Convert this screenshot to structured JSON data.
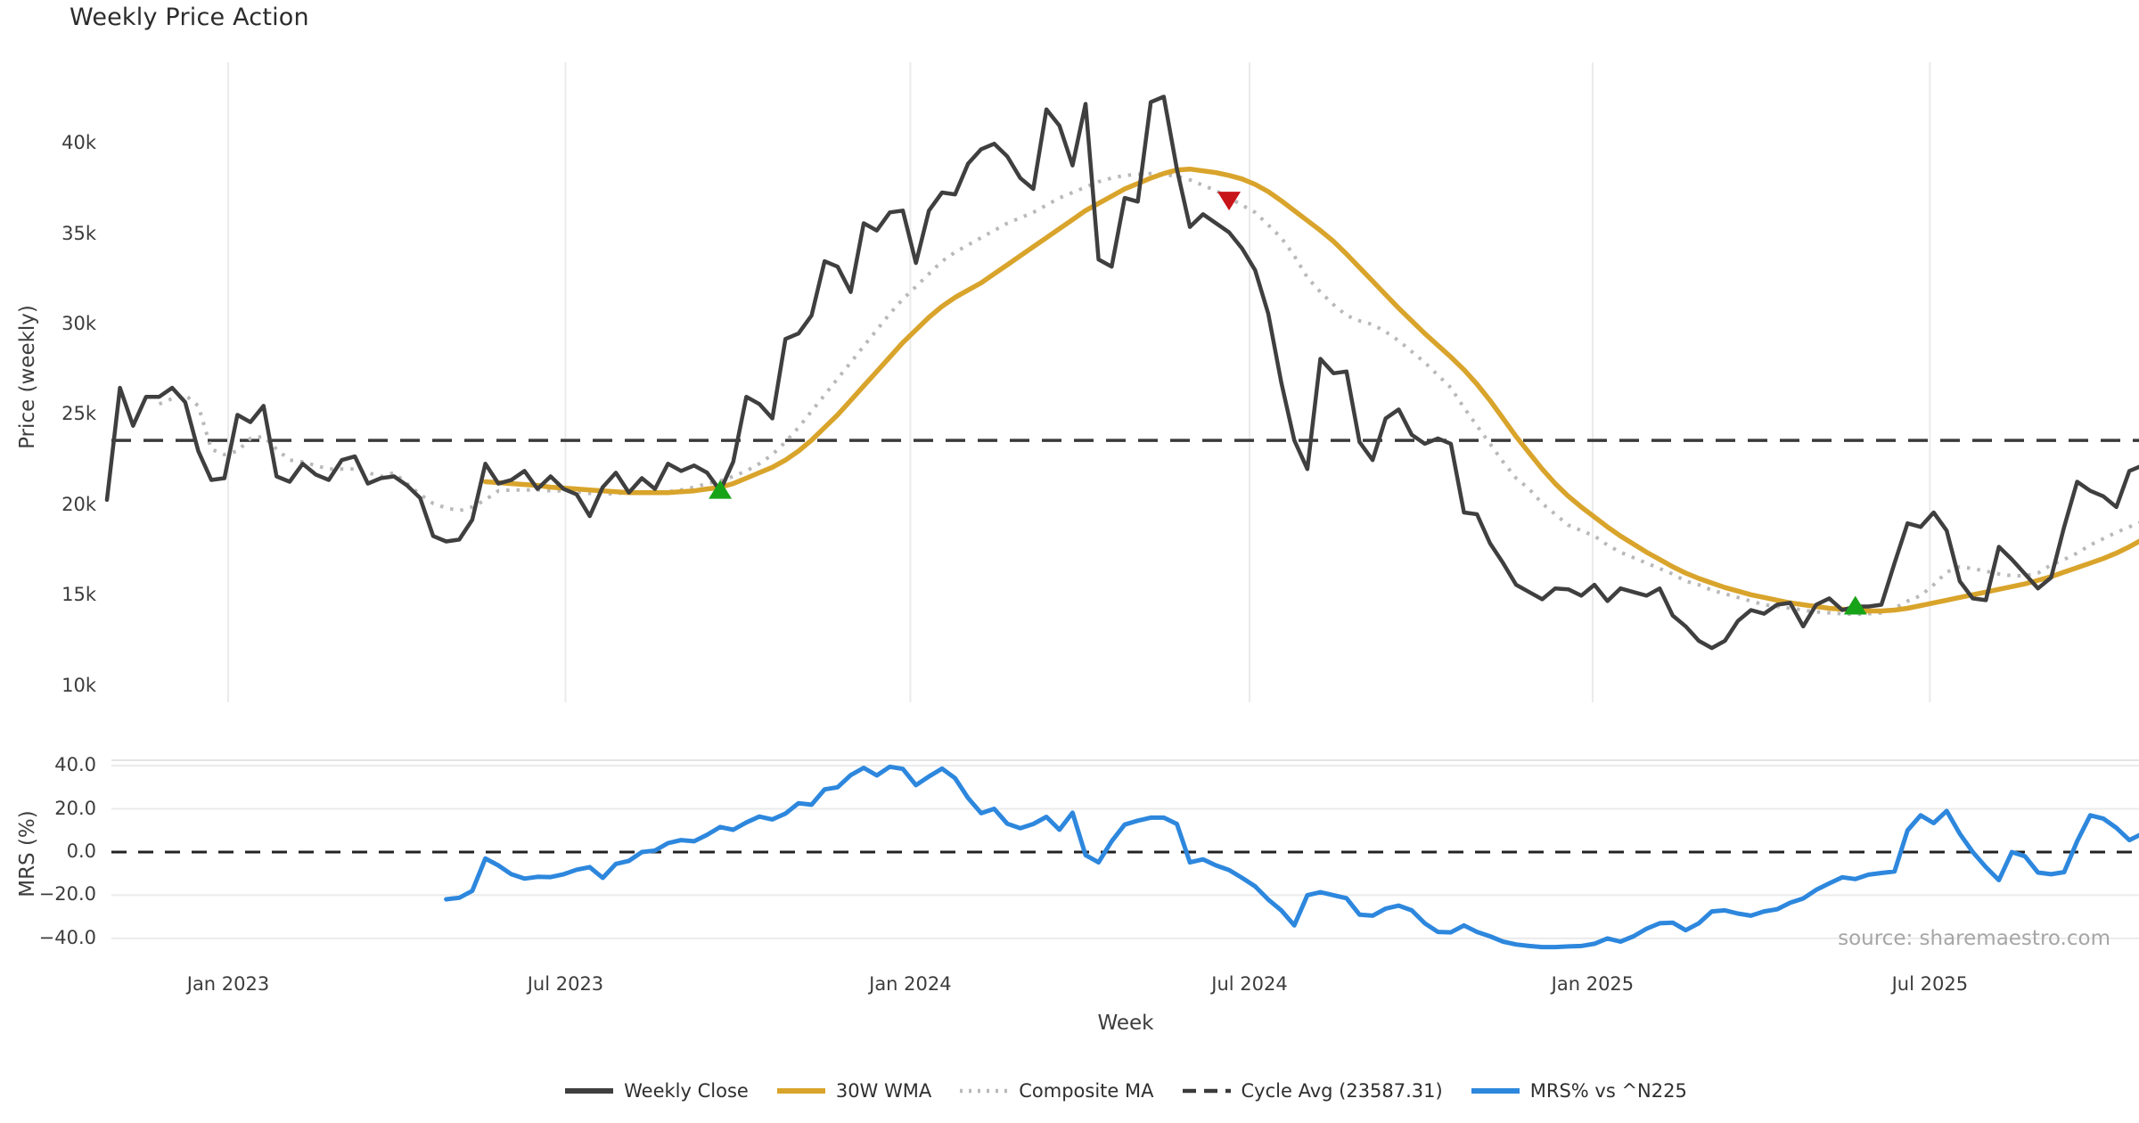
{
  "title": "Weekly Price Action",
  "source_note": "source: sharemaestro.com",
  "axes": {
    "price_axis_label": "Price (weekly)",
    "mrs_axis_label": "MRS (%)",
    "x_axis_label": "Week"
  },
  "legend": [
    {
      "label": "Weekly Close",
      "swatch": "solid",
      "color": "#3f3f3f"
    },
    {
      "label": "30W WMA",
      "swatch": "solid",
      "color": "#d9a42b"
    },
    {
      "label": "Composite MA",
      "swatch": "dotted",
      "color": "#b9b9b9"
    },
    {
      "label": "Cycle Avg (23587.31)",
      "swatch": "dashed",
      "color": "#3a3a3a"
    },
    {
      "label": "MRS% vs ^N225",
      "swatch": "solid",
      "color": "#2d87dd"
    }
  ],
  "chart_data": [
    {
      "panel": "price",
      "type": "line",
      "ylabel": "Price (weekly)",
      "ylim_k": [
        9,
        44.5
      ],
      "grid": "vertical-only",
      "yticks": [
        {
          "v": 40,
          "label": "40k"
        },
        {
          "v": 35,
          "label": "35k"
        },
        {
          "v": 30,
          "label": "30k"
        },
        {
          "v": 25,
          "label": "25k"
        },
        {
          "v": 20,
          "label": "20k"
        },
        {
          "v": 15,
          "label": "15k"
        },
        {
          "v": 10,
          "label": "10k"
        }
      ],
      "xticks": [
        {
          "week": 9.29,
          "label": "Jan 2023"
        },
        {
          "week": 35.14,
          "label": "Jul 2023"
        },
        {
          "week": 61.57,
          "label": "Jan 2024"
        },
        {
          "week": 87.57,
          "label": "Jul 2024"
        },
        {
          "week": 113.86,
          "label": "Jan 2025"
        },
        {
          "week": 139.71,
          "label": "Jul 2025"
        }
      ],
      "cycle_avg_k": 23.58731,
      "series": [
        {
          "name": "Weekly Close",
          "style": "solid",
          "color": "#3f3f3f",
          "width": 4.5,
          "start_week": 0,
          "values_k": [
            20.3,
            26.5,
            24.4,
            26.0,
            26.0,
            26.5,
            25.7,
            23.0,
            21.4,
            21.5,
            25.0,
            24.6,
            25.5,
            21.6,
            21.3,
            22.3,
            21.7,
            21.4,
            22.5,
            22.7,
            21.2,
            21.5,
            21.6,
            21.1,
            20.4,
            18.3,
            18.0,
            18.1,
            19.2,
            22.3,
            21.2,
            21.4,
            21.9,
            20.9,
            21.6,
            20.9,
            20.6,
            19.4,
            21.0,
            21.8,
            20.7,
            21.5,
            20.9,
            22.3,
            21.9,
            22.2,
            21.8,
            20.8,
            22.4,
            26.0,
            25.6,
            24.8,
            29.2,
            29.5,
            30.5,
            33.5,
            33.2,
            31.8,
            35.6,
            35.2,
            36.2,
            36.3,
            33.4,
            36.3,
            37.3,
            37.2,
            38.9,
            39.7,
            40.0,
            39.3,
            38.1,
            37.5,
            41.9,
            41.0,
            38.8,
            42.2,
            33.6,
            33.2,
            37.0,
            36.8,
            42.3,
            42.6,
            38.6,
            35.4,
            36.1,
            35.6,
            35.1,
            34.2,
            33.0,
            30.6,
            26.8,
            23.6,
            22.0,
            28.1,
            27.3,
            27.4,
            23.5,
            22.5,
            24.8,
            25.3,
            23.9,
            23.4,
            23.7,
            23.4,
            19.6,
            19.5,
            17.9,
            16.8,
            15.6,
            15.2,
            14.8,
            15.4,
            15.35,
            15.0,
            15.6,
            14.7,
            15.4,
            15.2,
            15.0,
            15.4,
            13.9,
            13.3,
            12.5,
            12.1,
            12.5,
            13.6,
            14.2,
            14.0,
            14.5,
            14.6,
            13.3,
            14.5,
            14.85,
            14.2,
            14.4,
            14.4,
            14.5,
            16.8,
            19.0,
            18.8,
            19.6,
            18.6,
            15.8,
            14.85,
            14.75,
            17.7,
            17.0,
            16.2,
            15.4,
            16.0,
            18.8,
            21.3,
            20.8,
            20.5,
            19.9,
            21.9,
            22.2
          ]
        },
        {
          "name": "30W WMA",
          "style": "solid",
          "color": "#d9a42b",
          "width": 5.5,
          "start_week": 29,
          "values_k": [
            21.3,
            21.25,
            21.2,
            21.15,
            21.1,
            21.0,
            20.95,
            20.9,
            20.85,
            20.8,
            20.75,
            20.7,
            20.7,
            20.7,
            20.7,
            20.75,
            20.8,
            20.9,
            21.0,
            21.2,
            21.5,
            21.8,
            22.1,
            22.5,
            23.0,
            23.6,
            24.3,
            25.0,
            25.8,
            26.6,
            27.4,
            28.2,
            29.0,
            29.7,
            30.4,
            31.0,
            31.5,
            31.9,
            32.3,
            32.8,
            33.3,
            33.8,
            34.3,
            34.8,
            35.3,
            35.8,
            36.3,
            36.7,
            37.1,
            37.5,
            37.8,
            38.1,
            38.35,
            38.55,
            38.6,
            38.5,
            38.4,
            38.25,
            38.05,
            37.75,
            37.35,
            36.85,
            36.3,
            35.75,
            35.2,
            34.6,
            33.9,
            33.15,
            32.4,
            31.65,
            30.9,
            30.2,
            29.5,
            28.85,
            28.2,
            27.5,
            26.7,
            25.8,
            24.8,
            23.8,
            22.9,
            22.0,
            21.2,
            20.5,
            19.9,
            19.35,
            18.8,
            18.3,
            17.85,
            17.4,
            17.0,
            16.6,
            16.25,
            15.95,
            15.7,
            15.45,
            15.25,
            15.05,
            14.9,
            14.75,
            14.6,
            14.5,
            14.4,
            14.3,
            14.25,
            14.2,
            14.15,
            14.15,
            14.2,
            14.3,
            14.45,
            14.6,
            14.75,
            14.9,
            15.05,
            15.2,
            15.35,
            15.5,
            15.65,
            15.85,
            16.05,
            16.3,
            16.55,
            16.8,
            17.05,
            17.35,
            17.7,
            18.1
          ]
        },
        {
          "name": "Composite MA",
          "style": "dotted",
          "color": "#b9b9b9",
          "width": 4,
          "start_week": 4,
          "values_k": [
            25.6,
            25.9,
            26.1,
            25.5,
            23.1,
            22.8,
            23.0,
            23.7,
            23.8,
            23.1,
            22.5,
            22.4,
            22.2,
            22.0,
            22.0,
            22.0,
            21.8,
            21.6,
            21.8,
            21.2,
            20.6,
            20.1,
            19.85,
            19.7,
            19.9,
            20.3,
            20.8,
            20.85,
            20.85,
            20.85,
            20.8,
            20.8,
            20.75,
            20.65,
            20.6,
            20.65,
            20.7,
            20.7,
            20.7,
            20.75,
            20.85,
            21.0,
            21.2,
            21.35,
            21.6,
            21.9,
            22.3,
            22.8,
            23.5,
            24.3,
            25.2,
            26.1,
            27.0,
            27.9,
            28.8,
            29.7,
            30.6,
            31.4,
            32.1,
            32.8,
            33.5,
            34.0,
            34.4,
            34.8,
            35.2,
            35.6,
            35.9,
            36.2,
            36.6,
            37.0,
            37.3,
            37.6,
            37.9,
            38.1,
            38.25,
            38.3,
            38.35,
            38.3,
            38.2,
            38.0,
            37.7,
            37.4,
            37.0,
            36.6,
            36.2,
            35.5,
            34.8,
            33.8,
            32.6,
            31.8,
            31.1,
            30.5,
            30.2,
            30.0,
            29.6,
            29.1,
            28.5,
            27.9,
            27.2,
            26.5,
            25.4,
            24.4,
            23.4,
            22.4,
            21.5,
            20.9,
            20.1,
            19.5,
            18.9,
            18.6,
            18.3,
            17.8,
            17.4,
            17.1,
            16.8,
            16.5,
            16.2,
            15.8,
            15.6,
            15.3,
            15.1,
            14.9,
            14.7,
            14.5,
            14.4,
            14.3,
            14.2,
            14.1,
            14.05,
            14.0,
            13.96,
            14.0,
            14.05,
            14.3,
            14.7,
            15.0,
            15.6,
            16.3,
            16.6,
            16.5,
            16.35,
            16.2,
            16.1,
            16.1,
            16.25,
            16.7,
            17.0,
            17.35,
            17.8,
            18.15,
            18.5,
            18.8,
            19.1
          ]
        }
      ],
      "signals": [
        {
          "type": "buy",
          "shape": "triangle-up",
          "color": "#17a317",
          "week": 47,
          "price_k": 20.8
        },
        {
          "type": "sell",
          "shape": "triangle-down",
          "color": "#c8151a",
          "week": 86,
          "price_k": 36.9
        },
        {
          "type": "buy",
          "shape": "triangle-up",
          "color": "#17a317",
          "week": 134,
          "price_k": 14.4
        }
      ]
    },
    {
      "panel": "mrs",
      "type": "line",
      "ylabel": "MRS (%)",
      "ylim": [
        -45,
        42.5
      ],
      "zero_line": true,
      "yticks": [
        {
          "v": 40,
          "label": "40.0"
        },
        {
          "v": 20,
          "label": "20.0"
        },
        {
          "v": 0,
          "label": "0.0"
        },
        {
          "v": -20,
          "label": "−20.0"
        },
        {
          "v": -40,
          "label": "−40.0"
        }
      ],
      "series": [
        {
          "name": "MRS% vs ^N225",
          "style": "solid",
          "color": "#2d87dd",
          "width": 5,
          "start_week": 26,
          "values": [
            -21.9,
            -21.2,
            -18.0,
            -3.0,
            -6.2,
            -10.3,
            -12.3,
            -11.5,
            -11.6,
            -10.3,
            -8.2,
            -7.0,
            -12.0,
            -5.5,
            -4.1,
            0.0,
            0.7,
            4.1,
            5.5,
            5.0,
            8.0,
            11.6,
            10.3,
            13.7,
            16.4,
            15.1,
            17.8,
            22.6,
            21.9,
            29.0,
            30.0,
            35.6,
            39.0,
            35.5,
            39.5,
            38.5,
            31.0,
            35.0,
            38.6,
            34.2,
            25.0,
            18.0,
            20.0,
            13.1,
            11.0,
            13.0,
            16.3,
            10.3,
            18.2,
            -1.4,
            -4.8,
            5.0,
            12.7,
            14.5,
            15.9,
            15.9,
            13.0,
            -4.8,
            -3.4,
            -6.2,
            -8.3,
            -12.0,
            -15.9,
            -22.0,
            -27.0,
            -34.0,
            -20.0,
            -18.6,
            -20.0,
            -21.4,
            -29.0,
            -29.5,
            -26.2,
            -24.8,
            -27.0,
            -33.0,
            -37.0,
            -37.2,
            -34.0,
            -37.0,
            -39.0,
            -41.5,
            -42.8,
            -43.5,
            -44.0,
            -44.0,
            -43.7,
            -43.5,
            -42.5,
            -40.0,
            -41.5,
            -39.0,
            -35.5,
            -33.0,
            -32.7,
            -36.2,
            -33.0,
            -27.5,
            -27.0,
            -28.5,
            -29.5,
            -27.5,
            -26.5,
            -23.5,
            -21.5,
            -17.5,
            -14.5,
            -11.7,
            -12.5,
            -10.5,
            -9.7,
            -9.0,
            10.0,
            17.0,
            13.4,
            19.0,
            8.5,
            0.0,
            -7.0,
            -13.0,
            0.0,
            -2.0,
            -9.5,
            -10.3,
            -9.3,
            5.0,
            17.0,
            15.5,
            11.2,
            5.5,
            8.5
          ]
        }
      ]
    }
  ]
}
